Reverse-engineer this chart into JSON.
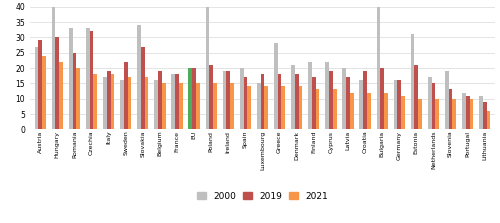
{
  "categories": [
    "Austria",
    "Hungary",
    "Romania",
    "Czechia",
    "Italy",
    "Sweden",
    "Slovakia",
    "Belgium",
    "France",
    "EU",
    "Poland",
    "Ireland",
    "Spain",
    "Luxembourg",
    "Greece",
    "Denmark",
    "Finland",
    "Cyprus",
    "Latvia",
    "Croatia",
    "Bulgaria",
    "Germany",
    "Estonia",
    "Netherlands",
    "Slovenia",
    "Portugal",
    "Lithuania"
  ],
  "series": {
    "2000": [
      27,
      40,
      33,
      33,
      17,
      16,
      34,
      16,
      18,
      20,
      40,
      19,
      20,
      15,
      28,
      21,
      22,
      22,
      20,
      16,
      41,
      16,
      31,
      17,
      19,
      12,
      11
    ],
    "2019": [
      29,
      30,
      25,
      32,
      19,
      22,
      27,
      19,
      18,
      20,
      21,
      19,
      17,
      18,
      18,
      18,
      17,
      19,
      17,
      19,
      20,
      16,
      21,
      15,
      13,
      11,
      9
    ],
    "2021": [
      24,
      22,
      20,
      18,
      18,
      17,
      17,
      15,
      15,
      15,
      15,
      15,
      14,
      14,
      14,
      14,
      13,
      13,
      12,
      12,
      12,
      11,
      10,
      10,
      10,
      10,
      6
    ]
  },
  "colors": {
    "2000": "#bfbfbf",
    "2019": "#c0504d",
    "2021": "#f79646"
  },
  "eu_color_2000": "#4ead5b",
  "eu_bar_index": 9,
  "ylim": [
    0,
    40
  ],
  "yticks": [
    0,
    5,
    10,
    15,
    20,
    25,
    30,
    35,
    40
  ],
  "legend_labels": [
    "2000",
    "2019",
    "2021"
  ],
  "background_color": "#ffffff",
  "grid_color": "#d9d9d9"
}
